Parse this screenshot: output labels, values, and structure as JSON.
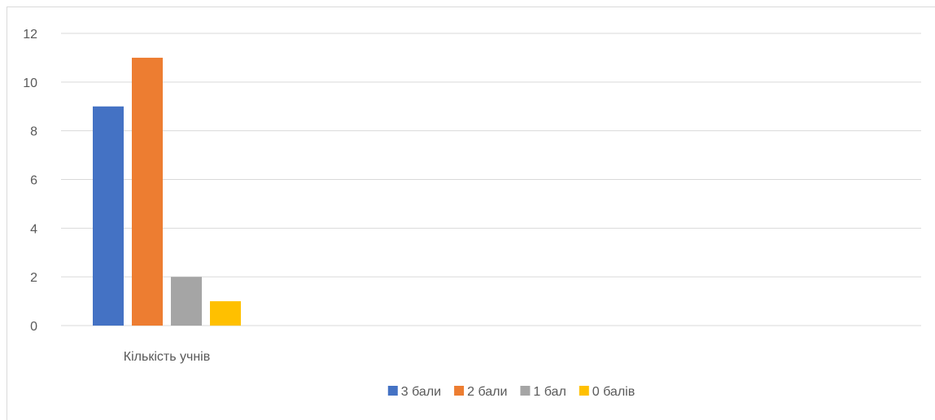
{
  "chart_data": {
    "type": "bar",
    "categories": [
      "Кількість учнів"
    ],
    "series": [
      {
        "name": "3 бали",
        "values": [
          9
        ],
        "color": "#4472C4"
      },
      {
        "name": "2 бали",
        "values": [
          11
        ],
        "color": "#ED7D31"
      },
      {
        "name": "1 бал",
        "values": [
          2
        ],
        "color": "#A5A5A5"
      },
      {
        "name": "0 балів",
        "values": [
          1
        ],
        "color": "#FFC000"
      }
    ],
    "title": "",
    "xlabel": "",
    "ylabel": "",
    "ylim": [
      0,
      12
    ],
    "yticks": [
      0,
      2,
      4,
      6,
      8,
      10,
      12
    ],
    "grid": true,
    "legend_position": "bottom",
    "gridline_color": "#d9d9d9",
    "text_color": "#595959"
  }
}
